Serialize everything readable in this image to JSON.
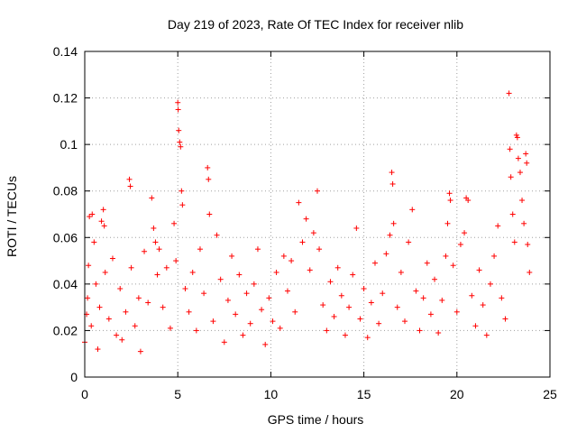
{
  "chart_data": {
    "type": "scatter",
    "title": "Day 219 of 2023, Rate Of TEC Index for receiver nlib",
    "xlabel": "GPS time / hours",
    "ylabel": "ROTI / TECUs",
    "xlim": [
      0,
      25
    ],
    "ylim": [
      0,
      0.14
    ],
    "xticks": [
      0,
      5,
      10,
      15,
      20,
      25
    ],
    "xtick_labels": [
      "0",
      "5",
      "10",
      "15",
      "20",
      "25"
    ],
    "yticks": [
      0,
      0.02,
      0.04,
      0.06,
      0.08,
      0.1,
      0.12,
      0.14
    ],
    "ytick_labels": [
      "0",
      "0.02",
      "0.04",
      "0.06",
      "0.08",
      "0.1",
      "0.12",
      "0.14"
    ],
    "grid": true,
    "marker": "plus",
    "color": "#ff0000",
    "points": [
      [
        0.0,
        0.015
      ],
      [
        0.1,
        0.027
      ],
      [
        0.15,
        0.034
      ],
      [
        0.2,
        0.048
      ],
      [
        0.25,
        0.069
      ],
      [
        0.35,
        0.022
      ],
      [
        0.4,
        0.07
      ],
      [
        0.5,
        0.058
      ],
      [
        0.6,
        0.04
      ],
      [
        0.7,
        0.012
      ],
      [
        0.8,
        0.03
      ],
      [
        0.9,
        0.067
      ],
      [
        1.0,
        0.072
      ],
      [
        1.05,
        0.065
      ],
      [
        1.1,
        0.045
      ],
      [
        1.3,
        0.025
      ],
      [
        1.5,
        0.051
      ],
      [
        1.7,
        0.018
      ],
      [
        1.9,
        0.038
      ],
      [
        2.0,
        0.016
      ],
      [
        2.2,
        0.028
      ],
      [
        2.4,
        0.085
      ],
      [
        2.45,
        0.082
      ],
      [
        2.5,
        0.047
      ],
      [
        2.7,
        0.022
      ],
      [
        2.9,
        0.034
      ],
      [
        3.0,
        0.011
      ],
      [
        3.2,
        0.054
      ],
      [
        3.4,
        0.032
      ],
      [
        3.6,
        0.077
      ],
      [
        3.7,
        0.064
      ],
      [
        3.8,
        0.058
      ],
      [
        3.9,
        0.044
      ],
      [
        4.0,
        0.055
      ],
      [
        4.2,
        0.03
      ],
      [
        4.4,
        0.047
      ],
      [
        4.6,
        0.021
      ],
      [
        4.8,
        0.066
      ],
      [
        4.9,
        0.05
      ],
      [
        5.0,
        0.118
      ],
      [
        5.02,
        0.115
      ],
      [
        5.05,
        0.106
      ],
      [
        5.1,
        0.101
      ],
      [
        5.15,
        0.099
      ],
      [
        5.2,
        0.08
      ],
      [
        5.25,
        0.074
      ],
      [
        5.4,
        0.038
      ],
      [
        5.6,
        0.028
      ],
      [
        5.8,
        0.045
      ],
      [
        6.0,
        0.02
      ],
      [
        6.2,
        0.055
      ],
      [
        6.4,
        0.036
      ],
      [
        6.6,
        0.09
      ],
      [
        6.65,
        0.085
      ],
      [
        6.7,
        0.07
      ],
      [
        6.9,
        0.024
      ],
      [
        7.1,
        0.061
      ],
      [
        7.3,
        0.042
      ],
      [
        7.5,
        0.015
      ],
      [
        7.7,
        0.033
      ],
      [
        7.9,
        0.052
      ],
      [
        8.1,
        0.027
      ],
      [
        8.3,
        0.044
      ],
      [
        8.5,
        0.018
      ],
      [
        8.7,
        0.036
      ],
      [
        8.9,
        0.023
      ],
      [
        9.1,
        0.04
      ],
      [
        9.3,
        0.055
      ],
      [
        9.5,
        0.029
      ],
      [
        9.7,
        0.014
      ],
      [
        9.9,
        0.034
      ],
      [
        10.1,
        0.024
      ],
      [
        10.3,
        0.045
      ],
      [
        10.5,
        0.021
      ],
      [
        10.7,
        0.052
      ],
      [
        10.9,
        0.037
      ],
      [
        11.1,
        0.05
      ],
      [
        11.3,
        0.028
      ],
      [
        11.5,
        0.075
      ],
      [
        11.7,
        0.058
      ],
      [
        11.9,
        0.068
      ],
      [
        12.1,
        0.046
      ],
      [
        12.3,
        0.062
      ],
      [
        12.5,
        0.08
      ],
      [
        12.6,
        0.055
      ],
      [
        12.8,
        0.031
      ],
      [
        13.0,
        0.02
      ],
      [
        13.2,
        0.041
      ],
      [
        13.4,
        0.026
      ],
      [
        13.6,
        0.047
      ],
      [
        13.8,
        0.035
      ],
      [
        14.0,
        0.018
      ],
      [
        14.2,
        0.03
      ],
      [
        14.4,
        0.044
      ],
      [
        14.6,
        0.064
      ],
      [
        14.8,
        0.025
      ],
      [
        15.0,
        0.038
      ],
      [
        15.2,
        0.017
      ],
      [
        15.4,
        0.032
      ],
      [
        15.6,
        0.049
      ],
      [
        15.8,
        0.023
      ],
      [
        16.0,
        0.036
      ],
      [
        16.2,
        0.053
      ],
      [
        16.4,
        0.061
      ],
      [
        16.5,
        0.088
      ],
      [
        16.55,
        0.083
      ],
      [
        16.6,
        0.066
      ],
      [
        16.8,
        0.03
      ],
      [
        17.0,
        0.045
      ],
      [
        17.2,
        0.024
      ],
      [
        17.4,
        0.058
      ],
      [
        17.6,
        0.072
      ],
      [
        17.8,
        0.037
      ],
      [
        18.0,
        0.02
      ],
      [
        18.2,
        0.034
      ],
      [
        18.4,
        0.049
      ],
      [
        18.6,
        0.027
      ],
      [
        18.8,
        0.042
      ],
      [
        19.0,
        0.019
      ],
      [
        19.2,
        0.033
      ],
      [
        19.4,
        0.052
      ],
      [
        19.5,
        0.066
      ],
      [
        19.6,
        0.079
      ],
      [
        19.65,
        0.076
      ],
      [
        19.8,
        0.048
      ],
      [
        20.0,
        0.028
      ],
      [
        20.2,
        0.057
      ],
      [
        20.4,
        0.062
      ],
      [
        20.5,
        0.077
      ],
      [
        20.6,
        0.076
      ],
      [
        20.8,
        0.035
      ],
      [
        21.0,
        0.022
      ],
      [
        21.2,
        0.046
      ],
      [
        21.4,
        0.031
      ],
      [
        21.6,
        0.018
      ],
      [
        21.8,
        0.04
      ],
      [
        22.0,
        0.052
      ],
      [
        22.2,
        0.065
      ],
      [
        22.4,
        0.034
      ],
      [
        22.6,
        0.025
      ],
      [
        22.8,
        0.122
      ],
      [
        22.85,
        0.098
      ],
      [
        22.9,
        0.086
      ],
      [
        23.0,
        0.07
      ],
      [
        23.1,
        0.058
      ],
      [
        23.2,
        0.104
      ],
      [
        23.25,
        0.103
      ],
      [
        23.3,
        0.094
      ],
      [
        23.4,
        0.088
      ],
      [
        23.5,
        0.076
      ],
      [
        23.6,
        0.066
      ],
      [
        23.7,
        0.096
      ],
      [
        23.75,
        0.092
      ],
      [
        23.8,
        0.057
      ],
      [
        23.9,
        0.045
      ]
    ]
  }
}
